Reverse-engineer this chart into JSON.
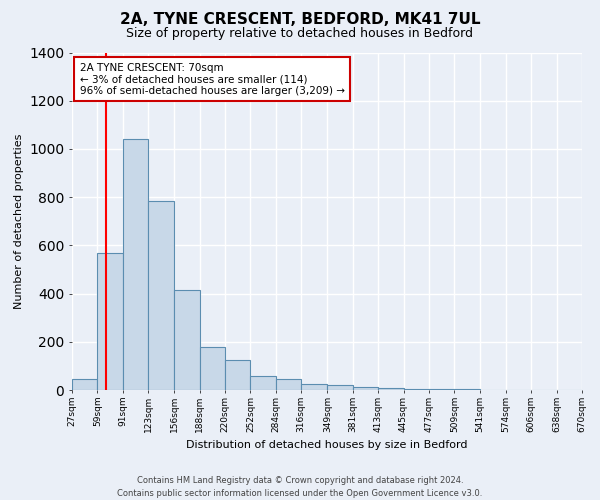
{
  "title": "2A, TYNE CRESCENT, BEDFORD, MK41 7UL",
  "subtitle": "Size of property relative to detached houses in Bedford",
  "xlabel": "Distribution of detached houses by size in Bedford",
  "ylabel": "Number of detached properties",
  "categories": [
    "27sqm",
    "59sqm",
    "91sqm",
    "123sqm",
    "156sqm",
    "188sqm",
    "220sqm",
    "252sqm",
    "284sqm",
    "316sqm",
    "349sqm",
    "381sqm",
    "413sqm",
    "445sqm",
    "477sqm",
    "509sqm",
    "541sqm",
    "574sqm",
    "606sqm",
    "638sqm",
    "670sqm"
  ],
  "hist_edges": [
    27,
    59,
    91,
    123,
    156,
    188,
    220,
    252,
    284,
    316,
    349,
    381,
    413,
    445,
    477,
    509,
    541,
    574,
    606,
    638,
    670
  ],
  "hist_counts": [
    47,
    570,
    1040,
    785,
    415,
    180,
    125,
    60,
    47,
    25,
    20,
    12,
    10,
    5,
    4,
    3,
    2,
    2,
    1,
    1
  ],
  "bar_color": "#c8d8e8",
  "bar_edge_color": "#5b8db0",
  "red_line_x": 70,
  "annotation_text": "2A TYNE CRESCENT: 70sqm\n← 3% of detached houses are smaller (114)\n96% of semi-detached houses are larger (3,209) →",
  "annotation_box_color": "#ffffff",
  "annotation_box_edge": "#cc0000",
  "ylim": [
    0,
    1400
  ],
  "xlim_left": 27,
  "xlim_right": 670,
  "background_color": "#eaeff7",
  "grid_color": "#ffffff",
  "yticks": [
    0,
    200,
    400,
    600,
    800,
    1000,
    1200,
    1400
  ],
  "footnote": "Contains HM Land Registry data © Crown copyright and database right 2024.\nContains public sector information licensed under the Open Government Licence v3.0."
}
